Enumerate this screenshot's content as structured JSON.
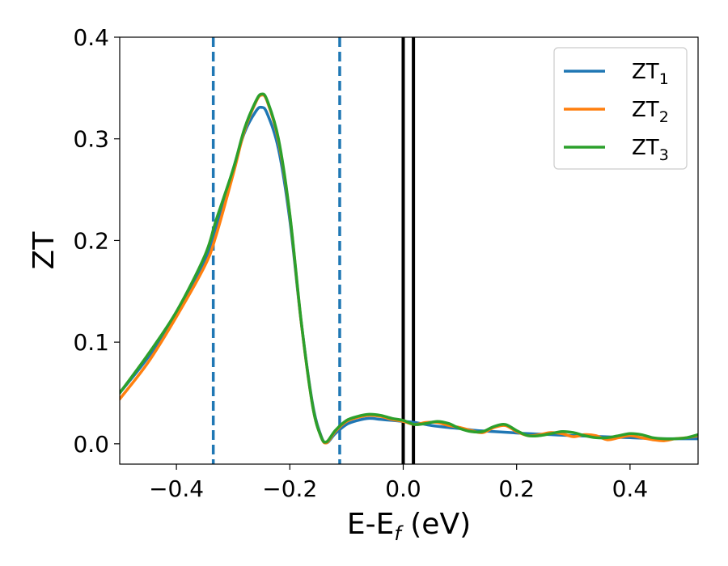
{
  "chart_data": {
    "type": "line",
    "title": "",
    "xlabel": "E-E_f (eV)",
    "ylabel": "ZT",
    "xlim": [
      -0.5,
      0.52
    ],
    "ylim": [
      -0.02,
      0.4
    ],
    "xticks": [
      -0.4,
      -0.2,
      0.0,
      0.2,
      0.4
    ],
    "xtick_labels": [
      "−0.4",
      "−0.2",
      "0.0",
      "0.2",
      "0.4"
    ],
    "yticks": [
      0.0,
      0.1,
      0.2,
      0.3,
      0.4
    ],
    "ytick_labels": [
      "0.0",
      "0.1",
      "0.2",
      "0.3",
      "0.4"
    ],
    "grid": false,
    "legend_position": "top-right",
    "vertical_lines": [
      {
        "x": -0.335,
        "style": "dashed",
        "color": "#1f77b4"
      },
      {
        "x": -0.112,
        "style": "dashed",
        "color": "#1f77b4"
      },
      {
        "x": 0.0,
        "style": "solid",
        "color": "#000000"
      },
      {
        "x": 0.018,
        "style": "solid",
        "color": "#000000"
      }
    ],
    "series": [
      {
        "name": "ZT1",
        "color": "#1f77b4",
        "x": [
          -0.5,
          -0.45,
          -0.4,
          -0.35,
          -0.33,
          -0.3,
          -0.28,
          -0.26,
          -0.25,
          -0.24,
          -0.22,
          -0.2,
          -0.18,
          -0.16,
          -0.145,
          -0.135,
          -0.12,
          -0.1,
          -0.08,
          -0.06,
          -0.04,
          -0.02,
          0.0,
          0.02,
          0.05,
          0.08,
          0.1,
          0.13,
          0.16,
          0.19,
          0.22,
          0.26,
          0.3,
          0.35,
          0.4,
          0.45,
          0.52
        ],
        "y": [
          0.05,
          0.085,
          0.127,
          0.18,
          0.214,
          0.27,
          0.306,
          0.327,
          0.331,
          0.325,
          0.29,
          0.22,
          0.12,
          0.04,
          0.008,
          0.001,
          0.01,
          0.019,
          0.023,
          0.025,
          0.024,
          0.023,
          0.022,
          0.021,
          0.018,
          0.016,
          0.015,
          0.013,
          0.012,
          0.011,
          0.01,
          0.009,
          0.008,
          0.007,
          0.006,
          0.005,
          0.005
        ]
      },
      {
        "name": "ZT2",
        "color": "#ff7f0e",
        "x": [
          -0.5,
          -0.45,
          -0.4,
          -0.35,
          -0.33,
          -0.3,
          -0.28,
          -0.26,
          -0.25,
          -0.24,
          -0.22,
          -0.2,
          -0.18,
          -0.16,
          -0.145,
          -0.135,
          -0.12,
          -0.1,
          -0.08,
          -0.06,
          -0.04,
          -0.02,
          0.0,
          0.02,
          0.04,
          0.06,
          0.08,
          0.1,
          0.12,
          0.14,
          0.16,
          0.18,
          0.2,
          0.22,
          0.24,
          0.26,
          0.28,
          0.3,
          0.32,
          0.34,
          0.36,
          0.38,
          0.4,
          0.42,
          0.44,
          0.46,
          0.48,
          0.5,
          0.52
        ],
        "y": [
          0.044,
          0.08,
          0.125,
          0.175,
          0.205,
          0.265,
          0.308,
          0.336,
          0.343,
          0.337,
          0.298,
          0.225,
          0.12,
          0.038,
          0.007,
          0.001,
          0.012,
          0.022,
          0.026,
          0.028,
          0.027,
          0.024,
          0.022,
          0.019,
          0.021,
          0.021,
          0.018,
          0.016,
          0.013,
          0.011,
          0.016,
          0.018,
          0.012,
          0.008,
          0.009,
          0.011,
          0.01,
          0.007,
          0.009,
          0.008,
          0.004,
          0.006,
          0.008,
          0.006,
          0.004,
          0.003,
          0.005,
          0.006,
          0.008
        ]
      },
      {
        "name": "ZT3",
        "color": "#2ca02c",
        "x": [
          -0.5,
          -0.45,
          -0.4,
          -0.35,
          -0.33,
          -0.3,
          -0.28,
          -0.26,
          -0.25,
          -0.24,
          -0.22,
          -0.2,
          -0.18,
          -0.16,
          -0.145,
          -0.135,
          -0.12,
          -0.1,
          -0.08,
          -0.06,
          -0.04,
          -0.02,
          0.0,
          0.02,
          0.04,
          0.06,
          0.08,
          0.1,
          0.12,
          0.14,
          0.16,
          0.18,
          0.2,
          0.22,
          0.24,
          0.26,
          0.28,
          0.3,
          0.32,
          0.34,
          0.36,
          0.38,
          0.4,
          0.42,
          0.44,
          0.46,
          0.48,
          0.5,
          0.52
        ],
        "y": [
          0.05,
          0.088,
          0.13,
          0.185,
          0.22,
          0.27,
          0.31,
          0.337,
          0.344,
          0.338,
          0.3,
          0.226,
          0.121,
          0.038,
          0.007,
          0.002,
          0.013,
          0.023,
          0.027,
          0.029,
          0.028,
          0.025,
          0.023,
          0.019,
          0.02,
          0.022,
          0.02,
          0.015,
          0.012,
          0.012,
          0.017,
          0.019,
          0.013,
          0.008,
          0.008,
          0.01,
          0.012,
          0.011,
          0.008,
          0.006,
          0.006,
          0.008,
          0.01,
          0.009,
          0.006,
          0.005,
          0.005,
          0.006,
          0.009
        ]
      }
    ]
  }
}
